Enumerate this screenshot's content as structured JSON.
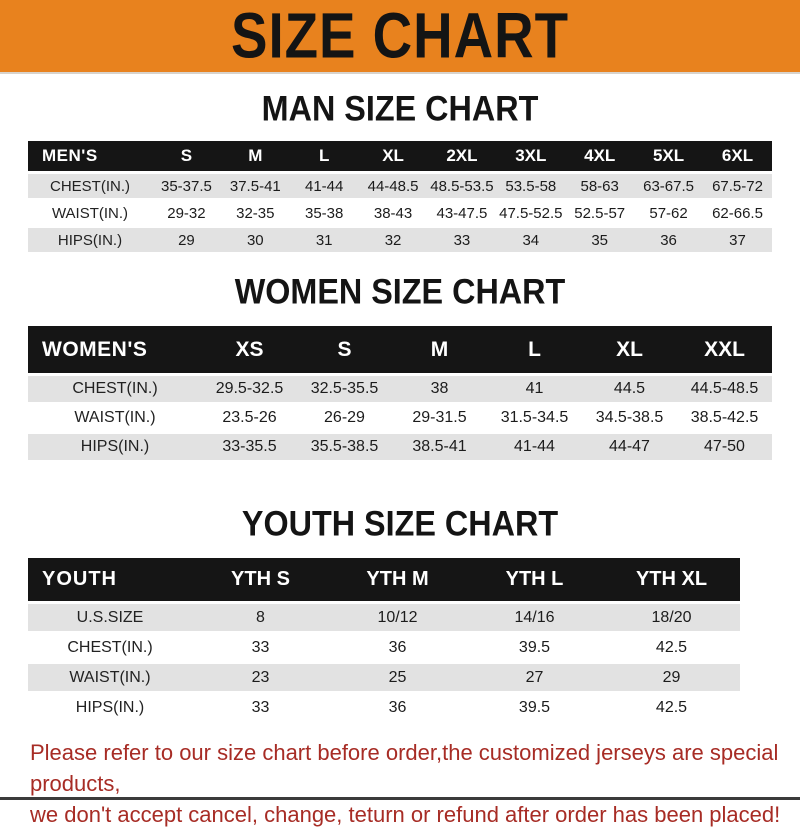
{
  "banner": {
    "title": "SIZE CHART"
  },
  "sections": [
    {
      "title": "MAN SIZE CHART",
      "header_label": "MEN'S",
      "columns": [
        "S",
        "M",
        "L",
        "XL",
        "2XL",
        "3XL",
        "4XL",
        "5XL",
        "6XL"
      ],
      "rows": [
        {
          "label": "CHEST(IN.)",
          "values": [
            "35-37.5",
            "37.5-41",
            "41-44",
            "44-48.5",
            "48.5-53.5",
            "53.5-58",
            "58-63",
            "63-67.5",
            "67.5-72"
          ]
        },
        {
          "label": "WAIST(IN.)",
          "values": [
            "29-32",
            "32-35",
            "35-38",
            "38-43",
            "43-47.5",
            "47.5-52.5",
            "52.5-57",
            "57-62",
            "62-66.5"
          ]
        },
        {
          "label": "HIPS(IN.)",
          "values": [
            "29",
            "30",
            "31",
            "32",
            "33",
            "34",
            "35",
            "36",
            "37"
          ]
        }
      ]
    },
    {
      "title": "WOMEN SIZE CHART",
      "header_label": "WOMEN'S",
      "columns": [
        "XS",
        "S",
        "M",
        "L",
        "XL",
        "XXL"
      ],
      "rows": [
        {
          "label": "CHEST(IN.)",
          "values": [
            "29.5-32.5",
            "32.5-35.5",
            "38",
            "41",
            "44.5",
            "44.5-48.5"
          ]
        },
        {
          "label": "WAIST(IN.)",
          "values": [
            "23.5-26",
            "26-29",
            "29-31.5",
            "31.5-34.5",
            "34.5-38.5",
            "38.5-42.5"
          ]
        },
        {
          "label": "HIPS(IN.)",
          "values": [
            "33-35.5",
            "35.5-38.5",
            "38.5-41",
            "41-44",
            "44-47",
            "47-50"
          ]
        }
      ]
    },
    {
      "title": "YOUTH SIZE CHART",
      "header_label": "YOUTH",
      "columns": [
        "YTH S",
        "YTH M",
        "YTH L",
        "YTH XL"
      ],
      "rows": [
        {
          "label": "U.S.SIZE",
          "values": [
            "8",
            "10/12",
            "14/16",
            "18/20"
          ]
        },
        {
          "label": "CHEST(IN.)",
          "values": [
            "33",
            "36",
            "39.5",
            "42.5"
          ]
        },
        {
          "label": "WAIST(IN.)",
          "values": [
            "23",
            "25",
            "27",
            "29"
          ]
        },
        {
          "label": "HIPS(IN.)",
          "values": [
            "33",
            "36",
            "39.5",
            "42.5"
          ]
        }
      ]
    }
  ],
  "footer": {
    "line1": "Please refer to our size chart before order,the customized jerseys are special products,",
    "line2": "we don't accept cancel, change, teturn or refund after order has been placed!"
  },
  "colors": {
    "banner_bg": "#e8821e",
    "header_bar": "#151515",
    "row_shade": "#e2e2e2",
    "footer_text": "#a72c25"
  }
}
